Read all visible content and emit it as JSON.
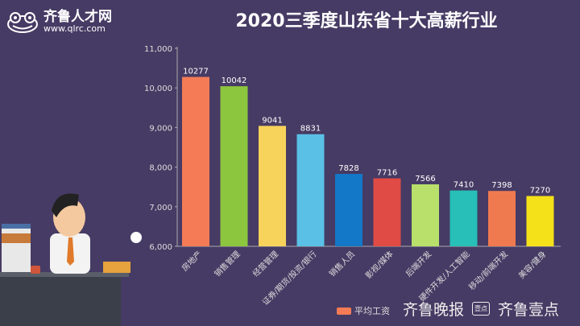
{
  "logo": {
    "name": "齐鲁人才网",
    "url": "www.qlrc.com"
  },
  "chart_data": {
    "type": "bar",
    "title": "2020三季度山东省十大高薪行业",
    "categories": [
      "房地产",
      "销售管理",
      "经营管理",
      "证券/期货/投资/银行",
      "销售人员",
      "影视/媒体",
      "后端开发",
      "硬件开发/人工智能",
      "移动/前端开发",
      "美容/健身"
    ],
    "values": [
      10277,
      10042,
      9041,
      8831,
      7828,
      7716,
      7566,
      7410,
      7398,
      7270
    ],
    "colors": [
      "#f47b55",
      "#8cc63f",
      "#f8d35b",
      "#5bc0e6",
      "#1478c8",
      "#e04b45",
      "#b8e06a",
      "#27bfb8",
      "#f07a50",
      "#f5e11a"
    ],
    "ylim": [
      6000,
      11000
    ],
    "yticks": [
      "6,000",
      "7,000",
      "8,000",
      "9,000",
      "10,000",
      "11,000"
    ],
    "legend": {
      "label": "平均工资",
      "position": "bottom"
    },
    "grid": false
  },
  "watermark": {
    "paper": "齐鲁晚报",
    "app_badge": "壹点",
    "app": "齐鲁壹点"
  }
}
